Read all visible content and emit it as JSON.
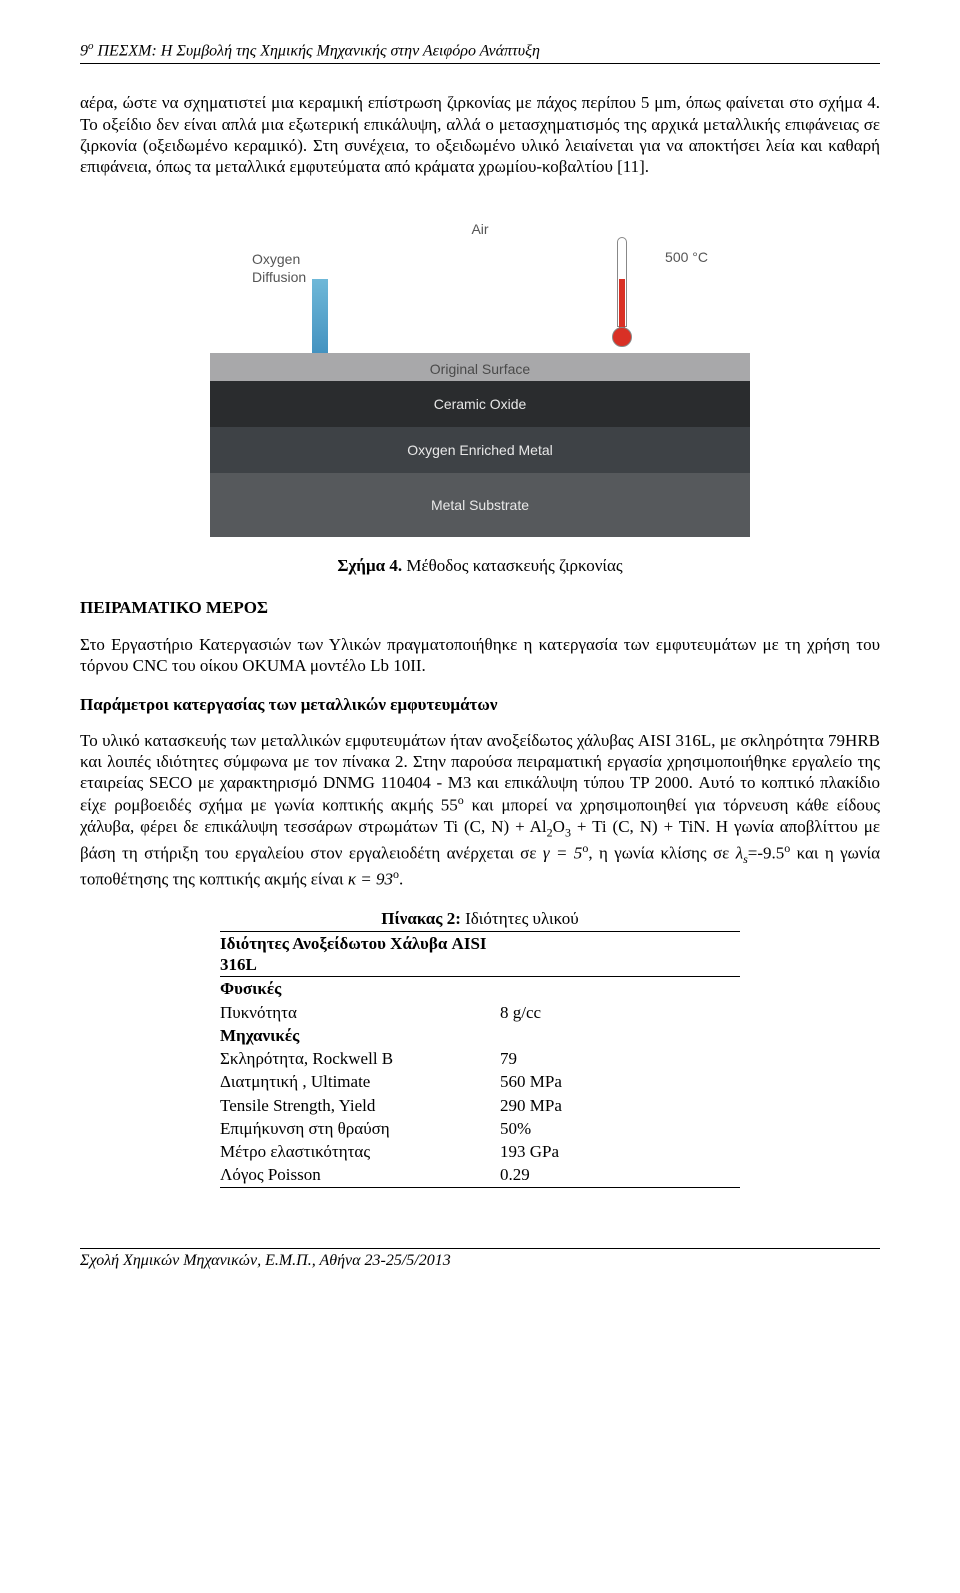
{
  "header": {
    "sup": "ο",
    "text_pre": "9",
    "text_post": " ΠΕΣΧΜ: Η Συμβολή της Χημικής Μηχανικής στην Αειφόρο Ανάπτυξη"
  },
  "para1": "αέρα, ώστε να σχηματιστεί μια κεραμική επίστρωση ζιρκονίας με πάχος περίπου 5 μm, όπως φαίνεται στο σχήμα 4. Το οξείδιο δεν είναι απλά μια εξωτερική επικάλυψη, αλλά ο μετασχηματισμός της αρχικά μεταλλικής επιφάνειας σε ζιρκονία (οξειδωμένο κεραμικό). Στη συνέχεια, το οξειδωμένο υλικό λειαίνεται για να αποκτήσει λεία και καθαρή επιφάνεια, όπως τα μεταλλικά εμφυτεύματα από κράματα χρωμίου-κοβαλτίου [11].",
  "diagram": {
    "air": "Air",
    "oxygen_label": "Oxygen",
    "diffusion_label": "Diffusion",
    "temp": "500 °C",
    "layer_original": "Original Surface",
    "layer_ceramic": "Ceramic Oxide",
    "layer_oxygen": "Oxygen Enriched Metal",
    "layer_substrate": "Metal Substrate",
    "colors": {
      "arrow_top": "#6fb8d8",
      "arrow_bottom": "#2b7aab",
      "thermo_red": "#d93025",
      "bg_original": "#a8a8aa",
      "bg_ceramic": "#2a2c2e",
      "bg_oxygen": "#3e4246",
      "bg_substrate": "#56595c"
    }
  },
  "caption_bold": "Σχήμα 4.",
  "caption_rest": " Μέθοδος κατασκευής ζιρκονίας",
  "section_head": "ΠΕΙΡΑΜΑΤΙΚΟ ΜΕΡΟΣ",
  "para2": "Στο Εργαστήριο Κατεργασιών των Υλικών πραγματοποιήθηκε η κατεργασία των εμφυτευμάτων με τη χρήση του τόρνου CNC του οίκου OKUMA μοντέλο Lb 10II.",
  "subhead": "Παράμετροι κατεργασίας των μεταλλικών εμφυτευμάτων",
  "para3_html": "Το υλικό κατασκευής των μεταλλικών εμφυτευμάτων ήταν ανοξείδωτος χάλυβας AISI 316L, με σκληρότητα 79HRB και λοιπές ιδιότητες σύμφωνα με τον πίνακα 2. Στην παρούσα πειραματική εργασία χρησιμοποιήθηκε εργαλείο της εταιρείας SECO με χαρακτηρισμό DNMG 110404 - M3 και επικάλυψη τύπου TP 2000. Αυτό το κοπτικό πλακίδιο είχε ρομβοειδές σχήμα με γωνία κοπτικής ακμής 55",
  "para3_deg": "ο",
  "para3_cont": " και μπορεί να χρησιμοποιηθεί για τόρνευση κάθε είδους χάλυβα, φέρει δε επικάλυψη τεσσάρων στρωμάτων Ti (C, N) + Al",
  "al_sub": "2",
  "o_txt": "O",
  "o_sub": "3",
  "para3_cont2": " + Ti (C, N) + TiN. Η γωνία αποβλίττου με βάση τη στήριξη του εργαλείου στον εργαλειοδέτη ανέρχεται σε ",
  "gamma": "γ = 5",
  "gamma_deg": "ο",
  "para3_cont3": ", η γωνία κλίσης σε ",
  "lambda": "λ",
  "lambda_sub": "s",
  "lambda_val": "=-9.5",
  "lambda_deg": "ο",
  "para3_cont4": " και η γωνία τοποθέτησης της κοπτικής ακμής είναι ",
  "kappa": "κ = 93",
  "kappa_deg": "ο",
  "period": ".",
  "table": {
    "title_bold": "Πίνακας 2:",
    "title_rest": " Ιδιότητες υλικού",
    "head": "Ιδιότητες Ανοξείδωτου Χάλυβα AISI 316L",
    "section1": "Φυσικές",
    "rows1": [
      {
        "k": "Πυκνότητα",
        "v": "8 g/cc"
      }
    ],
    "section2": "Μηχανικές",
    "rows2": [
      {
        "k": "Σκληρότητα, Rockwell B",
        "v": "79"
      },
      {
        "k": "Διατμητική , Ultimate",
        "v": "560 MPa"
      },
      {
        "k": "Tensile Strength, Yield",
        "v": "290 MPa"
      },
      {
        "k": "Επιμήκυνση στη θραύση",
        "v": "50%"
      },
      {
        "k": "Μέτρο ελαστικότητας",
        "v": "193 GPa"
      },
      {
        "k": "Λόγος Poisson",
        "v": "0.29"
      }
    ]
  },
  "footer": "Σχολή Χημικών Μηχανικών, Ε.Μ.Π., Αθήνα 23-25/5/2013"
}
